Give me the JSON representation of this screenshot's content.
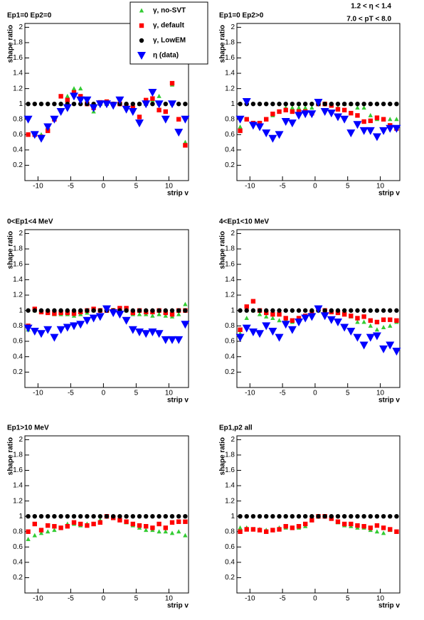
{
  "chart_data": [
    {
      "type": "scatter",
      "title": "Ep1=0 Ep2=0",
      "x_label": "strip v",
      "y_label": "shape ratio",
      "x": [
        -11.5,
        -10.5,
        -9.5,
        -8.5,
        -7.5,
        -6.5,
        -5.5,
        -4.5,
        -3.5,
        -2.5,
        -1.5,
        -0.5,
        0.5,
        1.5,
        2.5,
        3.5,
        4.5,
        5.5,
        6.5,
        7.5,
        8.5,
        9.5,
        10.5,
        11.5,
        12.5
      ],
      "xlim": [
        -12,
        13
      ],
      "xticks": [
        -10,
        -5,
        0,
        5,
        10
      ],
      "ylim": [
        0,
        2.05
      ],
      "yticks": [
        0.2,
        0.4,
        0.6,
        0.8,
        1,
        1.2,
        1.4,
        1.6,
        1.8,
        2
      ],
      "series": [
        {
          "name": "γ, no-SVT",
          "color": "#33cc33",
          "marker": "triangle-up",
          "values": [
            0.6,
            0.6,
            0.6,
            0.7,
            0.8,
            1.0,
            1.1,
            1.2,
            1.2,
            1.05,
            0.9,
            1.0,
            1.0,
            1.0,
            1.0,
            0.95,
            0.95,
            1.0,
            1.0,
            1.05,
            1.1,
            0.9,
            1.25,
            0.8,
            0.5
          ]
        },
        {
          "name": "γ, default",
          "color": "#ff0000",
          "marker": "square",
          "values": [
            0.6,
            0.6,
            0.57,
            0.65,
            0.8,
            1.1,
            1.05,
            1.15,
            1.1,
            1.0,
            0.95,
            1.02,
            1.03,
            1.0,
            1.0,
            0.97,
            0.95,
            0.83,
            1.05,
            1.07,
            0.92,
            0.9,
            1.27,
            0.8,
            0.46
          ]
        },
        {
          "name": "γ, LowEM",
          "color": "#000000",
          "marker": "circle",
          "values": [
            1,
            1,
            1,
            1,
            1,
            1,
            1,
            1,
            1,
            1,
            1,
            1,
            1,
            1,
            1,
            1,
            1,
            1,
            1,
            1,
            1,
            1,
            1,
            1,
            1
          ]
        },
        {
          "name": "η (data)",
          "color": "#0000ff",
          "marker": "triangle-down",
          "values": [
            0.8,
            0.6,
            0.55,
            0.7,
            0.8,
            0.9,
            0.95,
            1.1,
            1.05,
            1.05,
            0.95,
            1.0,
            1.0,
            0.98,
            1.05,
            0.93,
            0.9,
            0.75,
            1.0,
            1.15,
            1.0,
            0.8,
            1.0,
            0.63,
            0.8
          ]
        }
      ]
    },
    {
      "type": "scatter",
      "title": "Ep1=0 Ep2>0",
      "x_label": "strip v",
      "y_label": "shape ratio",
      "annotations": [
        "1.2 < η < 1.4",
        "7.0 < pT < 8.0"
      ],
      "x": [
        -11.5,
        -10.5,
        -9.5,
        -8.5,
        -7.5,
        -6.5,
        -5.5,
        -4.5,
        -3.5,
        -2.5,
        -1.5,
        -0.5,
        0.5,
        1.5,
        2.5,
        3.5,
        4.5,
        5.5,
        6.5,
        7.5,
        8.5,
        9.5,
        10.5,
        11.5,
        12.5
      ],
      "xlim": [
        -12,
        13
      ],
      "xticks": [
        -10,
        -5,
        0,
        5,
        10
      ],
      "ylim": [
        0,
        2.05
      ],
      "yticks": [
        0.2,
        0.4,
        0.6,
        0.8,
        1,
        1.2,
        1.4,
        1.6,
        1.8,
        2
      ],
      "series": [
        {
          "name": "γ, no-SVT",
          "color": "#33cc33",
          "marker": "triangle-up",
          "values": [
            0.7,
            0.8,
            0.75,
            0.75,
            0.8,
            0.85,
            0.9,
            0.95,
            0.95,
            0.95,
            0.95,
            0.95,
            1.0,
            1.0,
            1.0,
            0.95,
            1.0,
            1.0,
            0.95,
            0.95,
            0.85,
            0.8,
            0.8,
            0.8,
            0.8
          ]
        },
        {
          "name": "γ, default",
          "color": "#ff0000",
          "marker": "square",
          "values": [
            0.65,
            0.8,
            0.75,
            0.75,
            0.8,
            0.87,
            0.9,
            0.92,
            0.9,
            0.9,
            0.9,
            0.88,
            1.0,
            1.0,
            0.98,
            0.93,
            0.92,
            0.88,
            0.85,
            0.77,
            0.78,
            0.82,
            0.8,
            0.72,
            0.68
          ]
        },
        {
          "name": "γ, LowEM",
          "color": "#000000",
          "marker": "circle",
          "values": [
            1,
            1,
            1,
            1,
            1,
            1,
            1,
            1,
            1,
            1,
            1,
            1,
            1,
            1,
            1,
            1,
            1,
            1,
            1,
            1,
            1,
            1,
            1,
            1,
            1
          ]
        },
        {
          "name": "η (data)",
          "color": "#0000ff",
          "marker": "triangle-down",
          "values": [
            0.8,
            1.03,
            0.72,
            0.7,
            0.62,
            0.55,
            0.6,
            0.77,
            0.75,
            0.85,
            0.87,
            0.87,
            1.02,
            0.9,
            0.88,
            0.83,
            0.8,
            0.62,
            0.73,
            0.65,
            0.65,
            0.57,
            0.65,
            0.68,
            0.68
          ]
        }
      ]
    },
    {
      "type": "scatter",
      "title": "0<Ep1<4 MeV",
      "x_label": "strip v",
      "y_label": "shape ratio",
      "x": [
        -11.5,
        -10.5,
        -9.5,
        -8.5,
        -7.5,
        -6.5,
        -5.5,
        -4.5,
        -3.5,
        -2.5,
        -1.5,
        -0.5,
        0.5,
        1.5,
        2.5,
        3.5,
        4.5,
        5.5,
        6.5,
        7.5,
        8.5,
        9.5,
        10.5,
        11.5,
        12.5
      ],
      "xlim": [
        -12,
        13
      ],
      "xticks": [
        -10,
        -5,
        0,
        5,
        10
      ],
      "ylim": [
        0,
        2.05
      ],
      "yticks": [
        0.2,
        0.4,
        0.6,
        0.8,
        1,
        1.2,
        1.4,
        1.6,
        1.8,
        2
      ],
      "series": [
        {
          "name": "γ, no-SVT",
          "color": "#33cc33",
          "marker": "triangle-up",
          "values": [
            0.75,
            1.0,
            0.98,
            0.97,
            0.95,
            0.95,
            0.95,
            0.93,
            0.95,
            0.97,
            1.0,
            1.0,
            1.0,
            1.0,
            1.0,
            1.0,
            0.95,
            0.95,
            0.95,
            0.93,
            0.95,
            0.93,
            0.92,
            0.95,
            1.08
          ]
        },
        {
          "name": "γ, default",
          "color": "#ff0000",
          "marker": "square",
          "values": [
            0.8,
            1.02,
            0.98,
            0.97,
            0.96,
            0.97,
            0.97,
            0.96,
            0.98,
            1.0,
            1.02,
            1.0,
            1.0,
            1.0,
            1.03,
            1.03,
            0.97,
            1.0,
            0.98,
            0.98,
            1.0,
            0.97,
            0.95,
            1.0,
            1.0
          ]
        },
        {
          "name": "γ, LowEM",
          "color": "#000000",
          "marker": "circle",
          "values": [
            1,
            1,
            1,
            1,
            1,
            1,
            1,
            1,
            1,
            1,
            1,
            1,
            1,
            1,
            1,
            1,
            1,
            1,
            1,
            1,
            1,
            1,
            1,
            1,
            1
          ]
        },
        {
          "name": "η (data)",
          "color": "#0000ff",
          "marker": "triangle-down",
          "values": [
            0.77,
            0.73,
            0.7,
            0.75,
            0.65,
            0.75,
            0.78,
            0.8,
            0.82,
            0.87,
            0.9,
            0.92,
            1.02,
            0.97,
            0.95,
            0.87,
            0.75,
            0.72,
            0.7,
            0.72,
            0.7,
            0.62,
            0.62,
            0.62,
            0.82
          ]
        }
      ]
    },
    {
      "type": "scatter",
      "title": "4<Ep1<10 MeV",
      "x_label": "strip v",
      "y_label": "shape ratio",
      "x": [
        -11.5,
        -10.5,
        -9.5,
        -8.5,
        -7.5,
        -6.5,
        -5.5,
        -4.5,
        -3.5,
        -2.5,
        -1.5,
        -0.5,
        0.5,
        1.5,
        2.5,
        3.5,
        4.5,
        5.5,
        6.5,
        7.5,
        8.5,
        9.5,
        10.5,
        11.5,
        12.5
      ],
      "xlim": [
        -12,
        13
      ],
      "xticks": [
        -10,
        -5,
        0,
        5,
        10
      ],
      "ylim": [
        0,
        2.05
      ],
      "yticks": [
        0.2,
        0.4,
        0.6,
        0.8,
        1,
        1.2,
        1.4,
        1.6,
        1.8,
        2
      ],
      "series": [
        {
          "name": "γ, no-SVT",
          "color": "#33cc33",
          "marker": "triangle-up",
          "values": [
            0.7,
            0.9,
            1.0,
            0.95,
            0.92,
            0.9,
            0.87,
            0.87,
            0.85,
            0.9,
            0.92,
            0.95,
            1.0,
            1.0,
            0.98,
            0.97,
            0.95,
            0.92,
            0.85,
            0.85,
            0.8,
            0.75,
            0.78,
            0.8,
            0.85
          ]
        },
        {
          "name": "γ, default",
          "color": "#ff0000",
          "marker": "square",
          "values": [
            0.75,
            1.05,
            1.12,
            1.0,
            0.97,
            0.95,
            0.95,
            0.9,
            0.87,
            0.9,
            0.93,
            0.97,
            1.02,
            1.0,
            0.98,
            0.97,
            0.95,
            0.93,
            0.9,
            0.92,
            0.87,
            0.85,
            0.88,
            0.88,
            0.87
          ]
        },
        {
          "name": "γ, LowEM",
          "color": "#000000",
          "marker": "circle",
          "values": [
            1,
            1,
            1,
            1,
            1,
            1,
            1,
            1,
            1,
            1,
            1,
            1,
            1,
            1,
            1,
            1,
            1,
            1,
            1,
            1,
            1,
            1,
            1,
            1,
            1
          ]
        },
        {
          "name": "η (data)",
          "color": "#0000ff",
          "marker": "triangle-down",
          "values": [
            0.65,
            0.77,
            0.72,
            0.7,
            0.8,
            0.73,
            0.65,
            0.82,
            0.75,
            0.85,
            0.9,
            0.92,
            1.02,
            0.93,
            0.88,
            0.85,
            0.78,
            0.73,
            0.65,
            0.55,
            0.65,
            0.67,
            0.5,
            0.55,
            0.47
          ]
        }
      ]
    },
    {
      "type": "scatter",
      "title": "Ep1>10 MeV",
      "x_label": "strip v",
      "y_label": "shape ratio",
      "x": [
        -11.5,
        -10.5,
        -9.5,
        -8.5,
        -7.5,
        -6.5,
        -5.5,
        -4.5,
        -3.5,
        -2.5,
        -1.5,
        -0.5,
        0.5,
        1.5,
        2.5,
        3.5,
        4.5,
        5.5,
        6.5,
        7.5,
        8.5,
        9.5,
        10.5,
        11.5,
        12.5
      ],
      "xlim": [
        -12,
        13
      ],
      "xticks": [
        -10,
        -5,
        0,
        5,
        10
      ],
      "ylim": [
        0,
        2.05
      ],
      "yticks": [
        0.2,
        0.4,
        0.6,
        0.8,
        1,
        1.2,
        1.4,
        1.6,
        1.8,
        2
      ],
      "series": [
        {
          "name": "γ, no-SVT",
          "color": "#33cc33",
          "marker": "triangle-up",
          "values": [
            0.7,
            0.75,
            0.78,
            0.8,
            0.82,
            0.85,
            0.9,
            0.9,
            0.88,
            0.9,
            0.9,
            0.95,
            1.0,
            1.0,
            0.97,
            0.92,
            0.88,
            0.85,
            0.82,
            0.82,
            0.8,
            0.8,
            0.78,
            0.8,
            0.75
          ]
        },
        {
          "name": "γ, default",
          "color": "#ff0000",
          "marker": "square",
          "values": [
            0.8,
            0.9,
            0.82,
            0.88,
            0.87,
            0.85,
            0.87,
            0.92,
            0.9,
            0.88,
            0.9,
            0.92,
            1.0,
            0.98,
            0.95,
            0.93,
            0.9,
            0.88,
            0.87,
            0.85,
            0.9,
            0.85,
            0.92,
            0.93,
            0.93
          ]
        },
        {
          "name": "γ, LowEM",
          "color": "#000000",
          "marker": "circle",
          "values": [
            1,
            1,
            1,
            1,
            1,
            1,
            1,
            1,
            1,
            1,
            1,
            1,
            1,
            1,
            1,
            1,
            1,
            1,
            1,
            1,
            1,
            1,
            1,
            1,
            1
          ]
        }
      ]
    },
    {
      "type": "scatter",
      "title": "Ep1,p2 all",
      "x_label": "strip v",
      "y_label": "shape ratio",
      "x": [
        -11.5,
        -10.5,
        -9.5,
        -8.5,
        -7.5,
        -6.5,
        -5.5,
        -4.5,
        -3.5,
        -2.5,
        -1.5,
        -0.5,
        0.5,
        1.5,
        2.5,
        3.5,
        4.5,
        5.5,
        6.5,
        7.5,
        8.5,
        9.5,
        10.5,
        11.5,
        12.5
      ],
      "xlim": [
        -12,
        13
      ],
      "xticks": [
        -10,
        -5,
        0,
        5,
        10
      ],
      "ylim": [
        0,
        2.05
      ],
      "yticks": [
        0.2,
        0.4,
        0.6,
        0.8,
        1,
        1.2,
        1.4,
        1.6,
        1.8,
        2
      ],
      "series": [
        {
          "name": "γ, no-SVT",
          "color": "#33cc33",
          "marker": "triangle-up",
          "values": [
            0.85,
            0.85,
            0.83,
            0.83,
            0.82,
            0.82,
            0.85,
            0.85,
            0.85,
            0.85,
            0.87,
            0.95,
            1.0,
            1.0,
            0.98,
            0.92,
            0.88,
            0.87,
            0.85,
            0.85,
            0.82,
            0.8,
            0.78,
            0.82,
            0.8
          ]
        },
        {
          "name": "γ, default",
          "color": "#ff0000",
          "marker": "square",
          "values": [
            0.8,
            0.83,
            0.83,
            0.82,
            0.8,
            0.82,
            0.83,
            0.87,
            0.85,
            0.87,
            0.9,
            0.95,
            1.0,
            1.0,
            0.97,
            0.93,
            0.9,
            0.9,
            0.88,
            0.87,
            0.85,
            0.88,
            0.85,
            0.83,
            0.8
          ]
        },
        {
          "name": "γ, LowEM",
          "color": "#000000",
          "marker": "circle",
          "values": [
            1,
            1,
            1,
            1,
            1,
            1,
            1,
            1,
            1,
            1,
            1,
            1,
            1,
            1,
            1,
            1,
            1,
            1,
            1,
            1,
            1,
            1,
            1,
            1,
            1
          ]
        }
      ]
    }
  ]
}
